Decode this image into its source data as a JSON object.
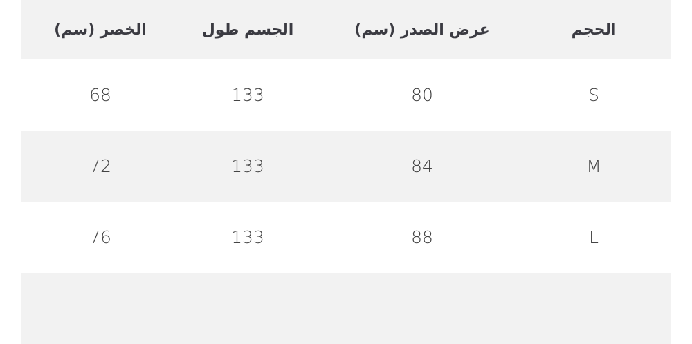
{
  "table": {
    "headers": [
      "الحجم",
      "عرض الصدر (سم)",
      "الجسم طول",
      "الخصر (سم)"
    ],
    "rows": [
      [
        "S",
        "80",
        "133",
        "68"
      ],
      [
        "M",
        "84",
        "133",
        "72"
      ],
      [
        "L",
        "88",
        "133",
        "76"
      ]
    ]
  },
  "colors": {
    "header_bg": "#f2f2f2",
    "alt_row_bg": "#f2f2f2",
    "text": "#3b3b42"
  }
}
